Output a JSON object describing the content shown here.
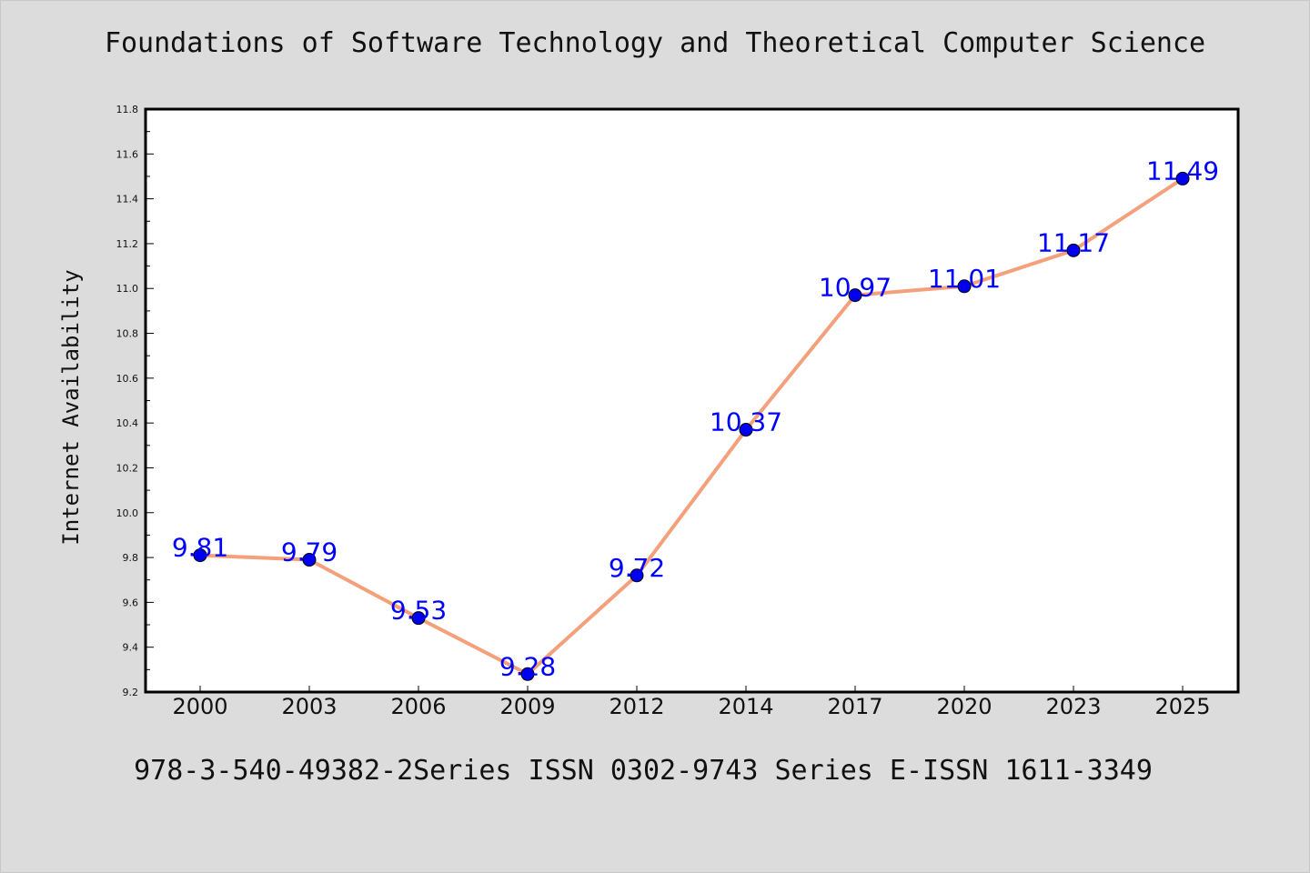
{
  "chart_data": {
    "type": "line",
    "title": "Foundations of Software Technology and Theoretical Computer Science",
    "xlabel": "",
    "ylabel": "Internet Availability",
    "categories": [
      "2000",
      "2003",
      "2006",
      "2009",
      "2012",
      "2014",
      "2017",
      "2020",
      "2023",
      "2025"
    ],
    "series": [
      {
        "values": [
          9.81,
          9.79,
          9.53,
          9.28,
          9.72,
          10.37,
          10.97,
          11.01,
          11.17,
          11.49
        ]
      }
    ],
    "data_labels": [
      "9.81",
      "9.79",
      "9.53",
      "9.28",
      "9.72",
      "10.37",
      "10.97",
      "11.01",
      "11.17",
      "11.49"
    ],
    "ylim": [
      9.2,
      11.8
    ],
    "yticks": [
      "9.2",
      "9.4",
      "9.6",
      "9.8",
      "10.0",
      "10.2",
      "10.4",
      "10.6",
      "10.8",
      "11.0",
      "11.2",
      "11.4",
      "11.6",
      "11.8"
    ],
    "grid": false,
    "colors": {
      "line": "#f4a07a",
      "marker": "#0000ee",
      "label": "#0000ff",
      "plot_bg": "#ffffff",
      "page_bg": "#dcdcdc"
    }
  },
  "footer": {
    "text": "978-3-540-49382-2Series ISSN 0302-9743 Series E-ISSN 1611-3349"
  }
}
